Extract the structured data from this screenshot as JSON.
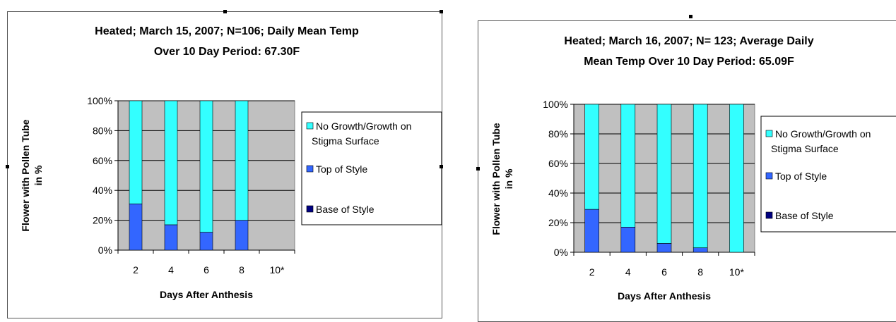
{
  "colors": {
    "plot_bg": "#c0c0c0",
    "no_growth": "#33ffff",
    "top_of_style": "#3366ff",
    "base_of_style": "#000080",
    "gridline": "#000000"
  },
  "chart_data": [
    {
      "type": "bar",
      "stacked": true,
      "title_lines": [
        "Heated; March 15, 2007; N=106; Daily Mean Temp",
        "Over 10 Day Period: 67.30F"
      ],
      "xlabel": "Days After Anthesis",
      "ylabel_lines": [
        "Flower with Pollen Tube",
        "in %"
      ],
      "categories": [
        "2",
        "4",
        "6",
        "8",
        "10*"
      ],
      "ylim": [
        0,
        100
      ],
      "yticks": [
        "0%",
        "20%",
        "40%",
        "60%",
        "80%",
        "100%"
      ],
      "grid": true,
      "legend": "right",
      "legend_labels": [
        "No Growth/Growth on Stigma Surface",
        "Top of Style",
        "Base of Style"
      ],
      "series": [
        {
          "name": "Base of Style",
          "values": [
            0,
            0,
            0,
            0,
            0
          ]
        },
        {
          "name": "Top of Style",
          "values": [
            31,
            17,
            12,
            20,
            0
          ]
        },
        {
          "name": "No Growth/Growth on Stigma Surface",
          "values": [
            69,
            83,
            88,
            80,
            0
          ]
        }
      ]
    },
    {
      "type": "bar",
      "stacked": true,
      "title_lines": [
        "Heated; March 16, 2007; N= 123; Average Daily",
        "Mean Temp Over 10 Day Period: 65.09F"
      ],
      "xlabel": "Days After Anthesis",
      "ylabel_lines": [
        "Flower with Pollen Tube",
        "in %"
      ],
      "categories": [
        "2",
        "4",
        "6",
        "8",
        "10*"
      ],
      "ylim": [
        0,
        100
      ],
      "yticks": [
        "0%",
        "20%",
        "40%",
        "60%",
        "80%",
        "100%"
      ],
      "grid": true,
      "legend": "right",
      "legend_labels": [
        "No Growth/Growth on Stigma Surface",
        "Top of Style",
        "Base of Style"
      ],
      "series": [
        {
          "name": "Base of Style",
          "values": [
            0,
            0,
            0,
            0,
            0
          ]
        },
        {
          "name": "Top of Style",
          "values": [
            29,
            17,
            6,
            3,
            0
          ]
        },
        {
          "name": "No Growth/Growth on Stigma Surface",
          "values": [
            71,
            83,
            94,
            97,
            100
          ]
        }
      ]
    }
  ]
}
